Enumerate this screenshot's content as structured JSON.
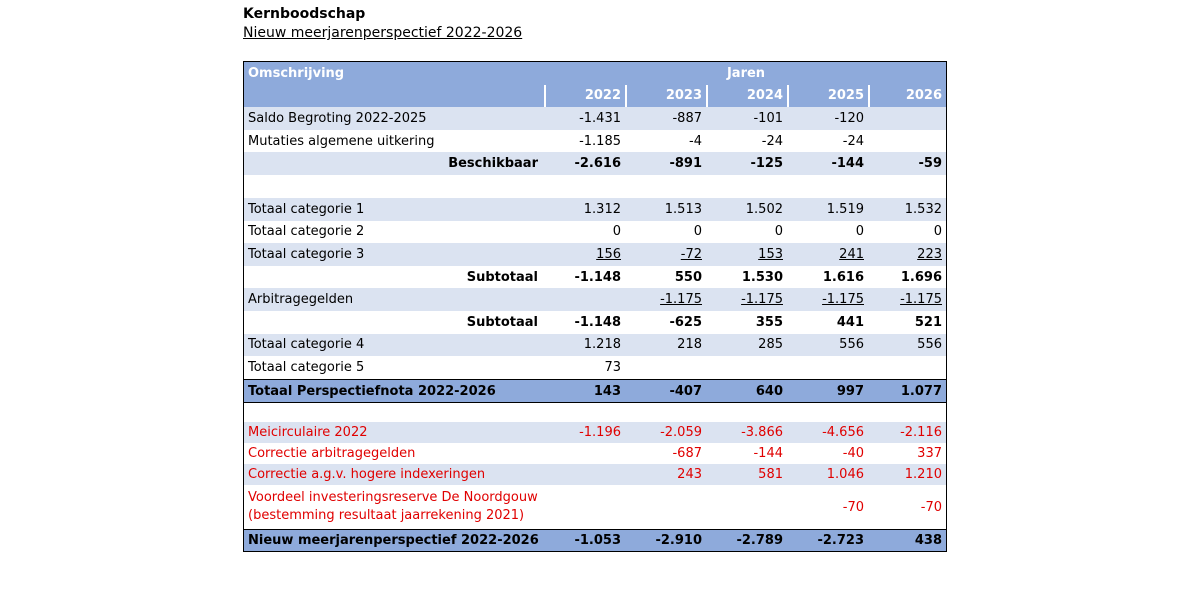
{
  "header": {
    "title": "Kernboodschap",
    "subtitle": "Nieuw meerjarenperspectief 2022-2026"
  },
  "table": {
    "col_label": "Omschrijving",
    "group_label": "Jaren",
    "years": [
      "2022",
      "2023",
      "2024",
      "2025",
      "2026"
    ],
    "rows": {
      "saldo": {
        "label": "Saldo Begroting 2022-2025",
        "values": [
          "-1.431",
          "-887",
          "-101",
          "-120",
          ""
        ]
      },
      "mutaties": {
        "label": "Mutaties algemene uitkering",
        "values": [
          "-1.185",
          "-4",
          "-24",
          "-24",
          ""
        ]
      },
      "beschikbaar": {
        "label": "Beschikbaar",
        "values": [
          "-2.616",
          "-891",
          "-125",
          "-144",
          "-59"
        ]
      },
      "cat1": {
        "label": "Totaal categorie 1",
        "values": [
          "1.312",
          "1.513",
          "1.502",
          "1.519",
          "1.532"
        ]
      },
      "cat2": {
        "label": "Totaal categorie 2",
        "values": [
          "0",
          "0",
          "0",
          "0",
          "0"
        ]
      },
      "cat3": {
        "label": "Totaal categorie 3",
        "values": [
          "156",
          "-72",
          "153",
          "241",
          "223"
        ]
      },
      "subtotaal1": {
        "label": "Subtotaal",
        "values": [
          "-1.148",
          "550",
          "1.530",
          "1.616",
          "1.696"
        ]
      },
      "arbitrage": {
        "label": "Arbitragegelden",
        "values": [
          "",
          "-1.175",
          "-1.175",
          "-1.175",
          "-1.175"
        ]
      },
      "subtotaal2": {
        "label": "Subtotaal",
        "values": [
          "-1.148",
          "-625",
          "355",
          "441",
          "521"
        ]
      },
      "cat4": {
        "label": "Totaal categorie 4",
        "values": [
          "1.218",
          "218",
          "285",
          "556",
          "556"
        ]
      },
      "cat5": {
        "label": "Totaal categorie 5",
        "values": [
          "73",
          "",
          "",
          "",
          ""
        ]
      },
      "totaal": {
        "label": "Totaal Perspectiefnota 2022-2026",
        "values": [
          "143",
          "-407",
          "640",
          "997",
          "1.077"
        ]
      },
      "meicirculaire": {
        "label": "Meicirculaire 2022",
        "values": [
          "-1.196",
          "-2.059",
          "-3.866",
          "-4.656",
          "-2.116"
        ]
      },
      "correctie_arb": {
        "label": "Correctie arbitragegelden",
        "values": [
          "",
          "-687",
          "-144",
          "-40",
          "337"
        ]
      },
      "correctie_idx": {
        "label": "Correctie a.g.v. hogere indexeringen",
        "values": [
          "",
          "243",
          "581",
          "1.046",
          "1.210"
        ]
      },
      "voordeel": {
        "label_line1": "Voordeel investeringsreserve De Noordgouw",
        "label_line2": "(bestemming resultaat jaarrekening 2021)",
        "values": [
          "",
          "",
          "",
          "-70",
          "-70"
        ]
      },
      "nieuw": {
        "label": "Nieuw meerjarenperspectief 2022-2026",
        "values": [
          "-1.053",
          "-2.910",
          "-2.789",
          "-2.723",
          "438"
        ]
      }
    }
  },
  "colors": {
    "header_blue": "#8eaadb",
    "band_blue": "#dbe3f1",
    "red_text": "#e00000"
  }
}
